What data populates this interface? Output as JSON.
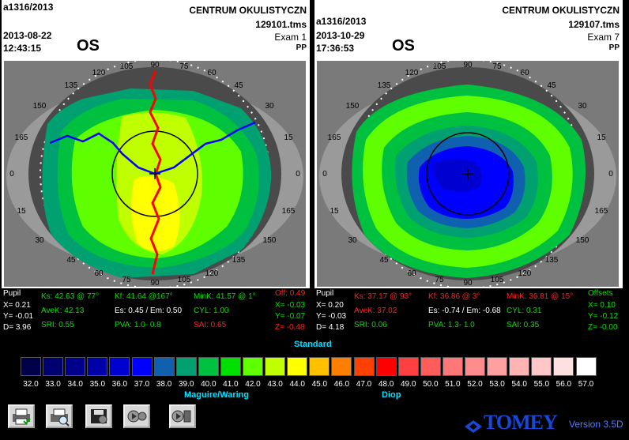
{
  "left": {
    "patient_id": "a1316/2013",
    "date": "2013-08-22",
    "time": "12:43:15",
    "eye": "OS",
    "clinic": "CENTRUM OKULISTYCZN",
    "file": "129101.tms",
    "exam": "Exam 1",
    "operator": "PP",
    "pupil": {
      "label": "Pupil",
      "x": "X= 0.21",
      "y": "Y= -0.01",
      "d": "D= 3.96"
    },
    "ks": "Ks: 42.63 @ 77°",
    "avek": "AveK: 42.13",
    "sri": "SRI: 0.55",
    "kf": "Kf: 41.64 @167°",
    "es": "Es: 0.45 / Em: 0.50",
    "pva": "PVA: 1.0- 0.8",
    "mink": "MinK: 41.57 @ 1°",
    "cyl": "CYL: 1.00",
    "sai": "SAI: 0.65",
    "offsets": {
      "label": "Off: 0.49",
      "x": "X= -0.03",
      "y": "Y= -0.07",
      "z": "Z= -0.48"
    }
  },
  "right": {
    "patient_id": "a1316/2013",
    "date": "2013-10-29",
    "time": "17:36:53",
    "eye": "OS",
    "clinic": "CENTRUM OKULISTYCZN",
    "file": "129107.tms",
    "exam": "Exam 7",
    "operator": "PP",
    "pupil": {
      "label": "Pupil",
      "x": "X= 0.20",
      "y": "Y= -0.03",
      "d": "D= 4.18"
    },
    "ks": "Ks: 37.17 @ 93°",
    "avek": "AveK: 37.02",
    "sri": "SRI: 0.06",
    "kf": "Kf: 36.86 @ 3°",
    "es": "Es: -0.74 / Em: -0.68",
    "pva": "PVA: 1.3- 1.0",
    "mink": "MinK: 36.81 @ 15°",
    "cyl": "CYL: 0.31",
    "sai": "SAI: 0.35",
    "offsets": {
      "label": "Offsets",
      "x": "X= 0.10",
      "y": "Y= -0.12",
      "z": "Z= -0.00"
    }
  },
  "scale": {
    "title": "Standard",
    "left_label": "Maguire/Waring",
    "right_label": "Diop",
    "ticks": [
      "32.0",
      "33.0",
      "34.0",
      "35.0",
      "36.0",
      "37.0",
      "38.0",
      "39.0",
      "40.0",
      "41.0",
      "42.0",
      "43.0",
      "44.0",
      "45.0",
      "46.0",
      "47.0",
      "48.0",
      "49.0",
      "50.0",
      "51.0",
      "52.0",
      "53.0",
      "54.0",
      "55.0",
      "56.0",
      "57.0"
    ],
    "colors": [
      "#00004a",
      "#000070",
      "#00008a",
      "#0000a8",
      "#0000d0",
      "#0000ff",
      "#1060b0",
      "#00a070",
      "#00c040",
      "#00e000",
      "#60ff00",
      "#c0ff00",
      "#ffff00",
      "#ffc000",
      "#ff8000",
      "#ff4000",
      "#ff0000",
      "#ff4040",
      "#ff5c5c",
      "#ff7878",
      "#ff8c8c",
      "#ffa0a0",
      "#ffb4b4",
      "#ffc8c8",
      "#ffe0e0",
      "#ffffff"
    ]
  },
  "axis_labels": [
    "90",
    "75",
    "60",
    "45",
    "30",
    "15",
    "0",
    "165",
    "150",
    "135",
    "120",
    "105"
  ],
  "brand": "TOMEY",
  "version": "Version 3.5D"
}
